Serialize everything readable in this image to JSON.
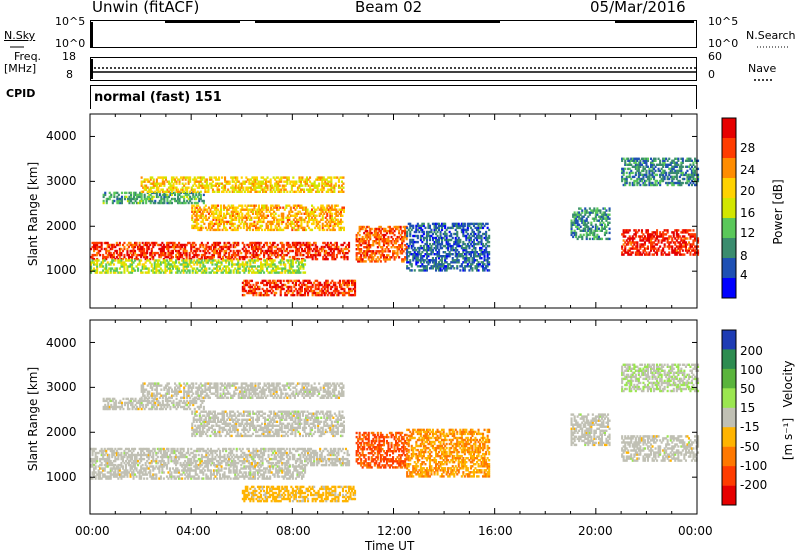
{
  "header": {
    "station": "Unwin (fitACF)",
    "beam": "Beam 02",
    "date": "05/Mar/2016"
  },
  "panels": {
    "nsky": {
      "label": "N.Sky",
      "ticks": [
        "10^5",
        "10^0"
      ],
      "right_label": "N.Search",
      "right_ticks": [
        "10^5",
        "10^0"
      ]
    },
    "freq": {
      "label": "Freq.",
      "unit": "[MHz]",
      "ticks": [
        "18",
        "8"
      ],
      "right_label": "Nave",
      "right_ticks": [
        "60",
        "0"
      ]
    },
    "cpid": {
      "label": "CPID",
      "mode": "normal (fast) 151"
    }
  },
  "chart_data": [
    {
      "type": "heatmap",
      "title": "",
      "quantity": "Power",
      "xlabel": "",
      "ylabel": "Slant Range [km]",
      "xlim": [
        "00:00",
        "24:00"
      ],
      "ylim": [
        180,
        4500
      ],
      "x_ticks": [
        "00:00",
        "04:00",
        "08:00",
        "12:00",
        "16:00",
        "20:00",
        "00:00"
      ],
      "y_ticks": [
        "1000",
        "2000",
        "3000",
        "4000"
      ],
      "colorbar": {
        "label": "Power [dB]",
        "ticks": [
          "4",
          "8",
          "12",
          "16",
          "20",
          "24",
          "28"
        ],
        "range": [
          0,
          30
        ]
      },
      "colors": [
        "#0000ff",
        "#1e50b4",
        "#3a8c6e",
        "#5ac85a",
        "#d2e600",
        "#ffd200",
        "#ff8c00",
        "#ff3c00",
        "#e60000"
      ],
      "echo_regions": [
        {
          "t_start": 0.0,
          "t_end": 10.2,
          "r_min": 1250,
          "r_max": 1650,
          "power": 26
        },
        {
          "t_start": 0.0,
          "t_end": 8.5,
          "r_min": 950,
          "r_max": 1250,
          "power": 14
        },
        {
          "t_start": 0.5,
          "t_end": 4.5,
          "r_min": 2500,
          "r_max": 2750,
          "power": 10
        },
        {
          "t_start": 2.0,
          "t_end": 10.0,
          "r_min": 2750,
          "r_max": 3100,
          "power": 18
        },
        {
          "t_start": 4.0,
          "t_end": 10.0,
          "r_min": 1900,
          "r_max": 2450,
          "power": 20
        },
        {
          "t_start": 10.5,
          "t_end": 12.5,
          "r_min": 1200,
          "r_max": 2000,
          "power": 24
        },
        {
          "t_start": 12.5,
          "t_end": 15.8,
          "r_min": 1000,
          "r_max": 2050,
          "power": 6
        },
        {
          "t_start": 6.0,
          "t_end": 10.5,
          "r_min": 450,
          "r_max": 800,
          "power": 26
        },
        {
          "t_start": 19.0,
          "t_end": 20.5,
          "r_min": 1700,
          "r_max": 2400,
          "power": 9
        },
        {
          "t_start": 21.0,
          "t_end": 24.0,
          "r_min": 1350,
          "r_max": 1900,
          "power": 27
        },
        {
          "t_start": 21.0,
          "t_end": 24.0,
          "r_min": 2900,
          "r_max": 3500,
          "power": 8
        }
      ]
    },
    {
      "type": "heatmap",
      "title": "",
      "quantity": "Velocity",
      "xlabel": "Time UT",
      "ylabel": "Slant Range [km]",
      "xlim": [
        "00:00",
        "24:00"
      ],
      "ylim": [
        180,
        4500
      ],
      "x_ticks": [
        "00:00",
        "04:00",
        "08:00",
        "12:00",
        "16:00",
        "20:00",
        "00:00"
      ],
      "y_ticks": [
        "1000",
        "2000",
        "3000",
        "4000"
      ],
      "colorbar": {
        "label": "Velocity",
        "unit": "[m s⁻¹]",
        "ticks": [
          "200",
          "100",
          "50",
          "15",
          "-15",
          "-50",
          "-100",
          "-200"
        ],
        "range": [
          -250,
          250
        ]
      },
      "colors": [
        "#1e3cb4",
        "#2d8c50",
        "#5ab43c",
        "#9be650",
        "#c0c0b4",
        "#ffb400",
        "#ff7800",
        "#ff3c00",
        "#e60000"
      ],
      "echo_regions": [
        {
          "t_start": 0.0,
          "t_end": 10.2,
          "r_min": 1250,
          "r_max": 1650,
          "velocity": 0
        },
        {
          "t_start": 0.0,
          "t_end": 8.5,
          "r_min": 950,
          "r_max": 1250,
          "velocity": 0
        },
        {
          "t_start": 0.5,
          "t_end": 4.5,
          "r_min": 2500,
          "r_max": 2750,
          "velocity": 0
        },
        {
          "t_start": 2.0,
          "t_end": 10.0,
          "r_min": 2750,
          "r_max": 3100,
          "velocity": 0
        },
        {
          "t_start": 4.0,
          "t_end": 10.0,
          "r_min": 1900,
          "r_max": 2450,
          "velocity": 0
        },
        {
          "t_start": 10.5,
          "t_end": 12.5,
          "r_min": 1200,
          "r_max": 2000,
          "velocity": -150
        },
        {
          "t_start": 12.5,
          "t_end": 15.8,
          "r_min": 1000,
          "r_max": 2050,
          "velocity": -80
        },
        {
          "t_start": 6.0,
          "t_end": 10.5,
          "r_min": 450,
          "r_max": 800,
          "velocity": -50
        },
        {
          "t_start": 19.0,
          "t_end": 20.5,
          "r_min": 1700,
          "r_max": 2400,
          "velocity": 0
        },
        {
          "t_start": 21.0,
          "t_end": 24.0,
          "r_min": 1350,
          "r_max": 1900,
          "velocity": 0
        },
        {
          "t_start": 21.0,
          "t_end": 24.0,
          "r_min": 2900,
          "r_max": 3500,
          "velocity": 20
        }
      ]
    }
  ]
}
